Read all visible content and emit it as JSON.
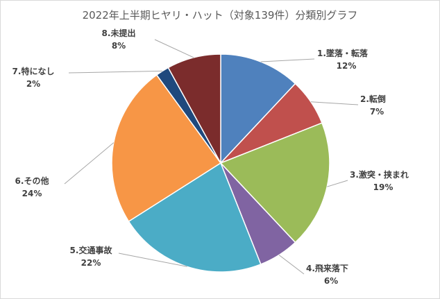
{
  "chart_data": {
    "type": "pie",
    "title": "2022年上半期ヒヤリ・ハット（対象139件）分類別グラフ",
    "slices": [
      {
        "label": "1.墜落・転落",
        "value": 12,
        "pct_label": "12%",
        "color": "#4f81bd"
      },
      {
        "label": "2.転倒",
        "value": 7,
        "pct_label": "7%",
        "color": "#c0504d"
      },
      {
        "label": "3.激突・挟まれ",
        "value": 19,
        "pct_label": "19%",
        "color": "#9bbb59"
      },
      {
        "label": "4.飛来落下",
        "value": 6,
        "pct_label": "6%",
        "color": "#8064a2"
      },
      {
        "label": "5.交通事故",
        "value": 22,
        "pct_label": "22%",
        "color": "#4bacc6"
      },
      {
        "label": "6.その他",
        "value": 24,
        "pct_label": "24%",
        "color": "#f79646"
      },
      {
        "label": "7.特になし",
        "value": 2,
        "pct_label": "2%",
        "color": "#1f497d"
      },
      {
        "label": "8.未提出",
        "value": 8,
        "pct_label": "8%",
        "color": "#7b2c2c"
      }
    ]
  }
}
